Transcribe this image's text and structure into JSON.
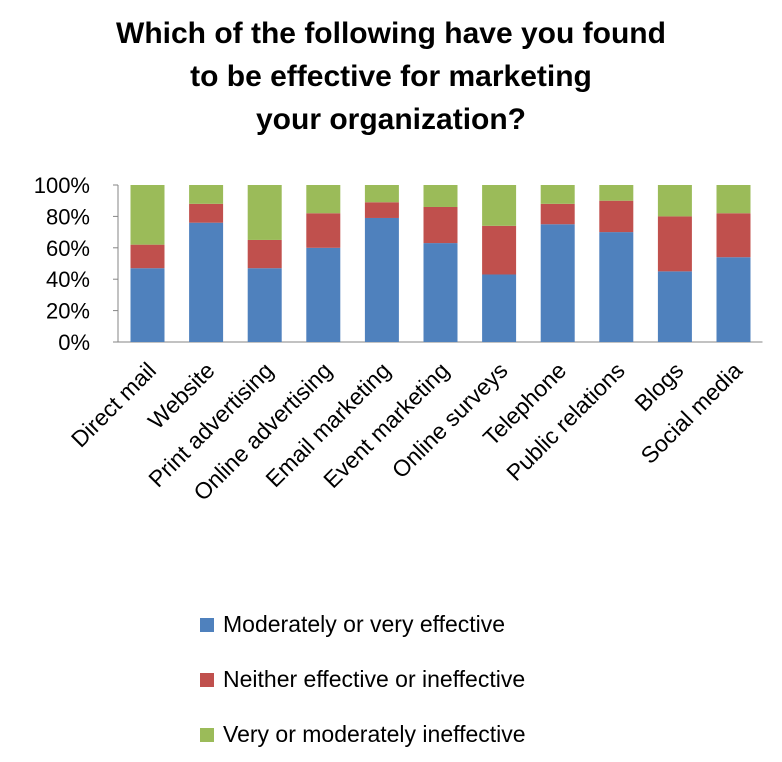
{
  "title_lines": [
    "Which of the following have you found",
    "to be effective for marketing",
    "your organization?"
  ],
  "chart_data": {
    "type": "bar",
    "stacked": true,
    "percent": true,
    "categories": [
      "Direct mail",
      "Website",
      "Print advertising",
      "Online advertising",
      "Email marketing",
      "Event marketing",
      "Online surveys",
      "Telephone",
      "Public relations",
      "Blogs",
      "Social media"
    ],
    "series": [
      {
        "name": "Moderately or very effective",
        "color": "#4F81BD",
        "values": [
          47,
          76,
          47,
          60,
          79,
          63,
          43,
          75,
          70,
          45,
          54
        ]
      },
      {
        "name": "Neither effective or ineffective",
        "color": "#C0504D",
        "values": [
          15,
          12,
          18,
          22,
          10,
          23,
          31,
          13,
          20,
          35,
          28
        ]
      },
      {
        "name": "Very or moderately ineffective",
        "color": "#9BBB59",
        "values": [
          38,
          12,
          35,
          18,
          11,
          14,
          26,
          12,
          10,
          20,
          18
        ]
      }
    ],
    "yticks": [
      "0%",
      "20%",
      "40%",
      "60%",
      "80%",
      "100%"
    ],
    "ylim": [
      0,
      100
    ],
    "legend_position": "bottom",
    "grid": false
  }
}
